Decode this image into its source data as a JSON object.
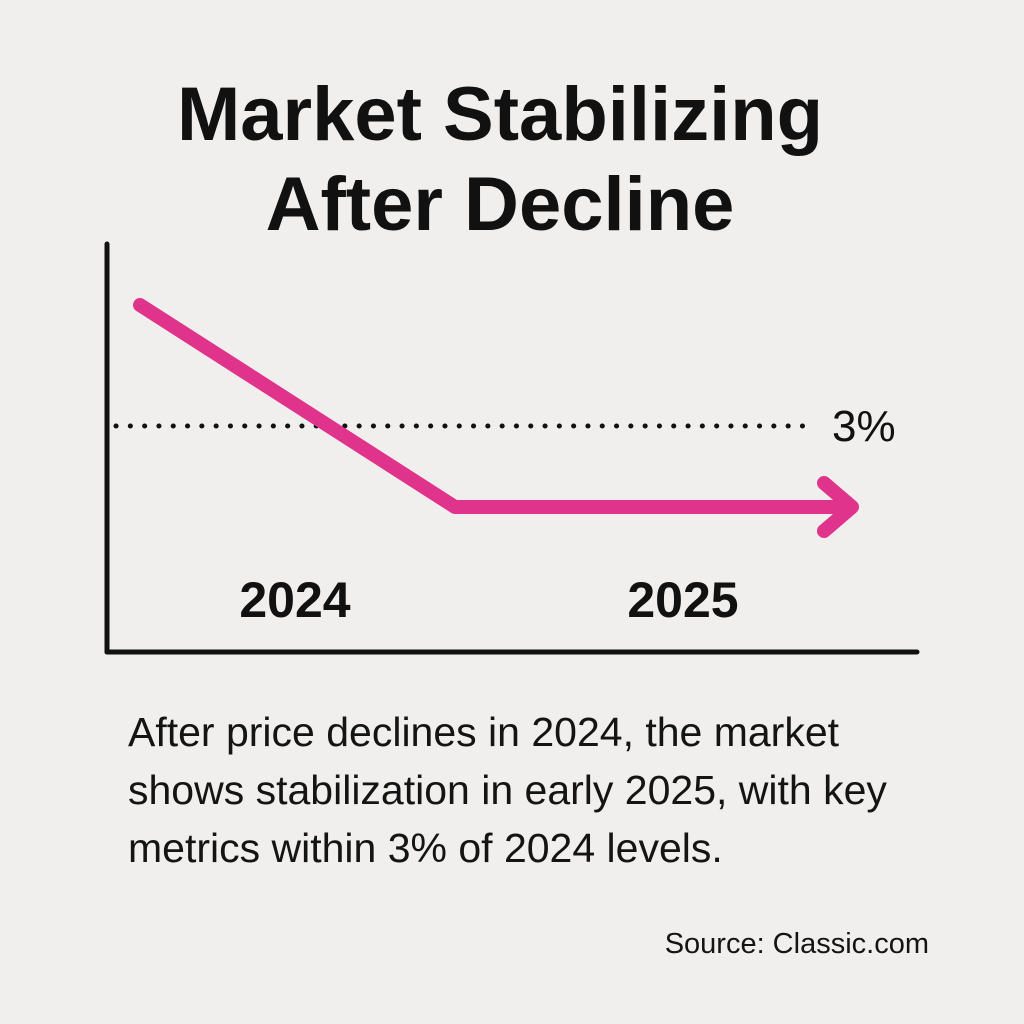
{
  "title_line1": "Market Stabilizing",
  "title_line2": "After Decline",
  "caption": "After price declines in 2024, the market shows stabilization in early 2025, with key metrics within 3% of 2024 levels.",
  "source": "Source: Classic.com",
  "colors": {
    "background": "#f0efed",
    "line": "#e0338c",
    "text": "#141414"
  },
  "chart_data": {
    "type": "line",
    "title": "Market Stabilizing After Decline",
    "x_tick_labels": [
      "2024",
      "2025"
    ],
    "series": [
      {
        "x": [
          0,
          0.45,
          1
        ],
        "y": [
          10,
          0,
          0
        ],
        "end_marker": "arrow"
      }
    ],
    "reference_line": {
      "label": "3%",
      "style": "dotted"
    },
    "axes": {
      "y_ticks": "none",
      "grid": false
    }
  }
}
